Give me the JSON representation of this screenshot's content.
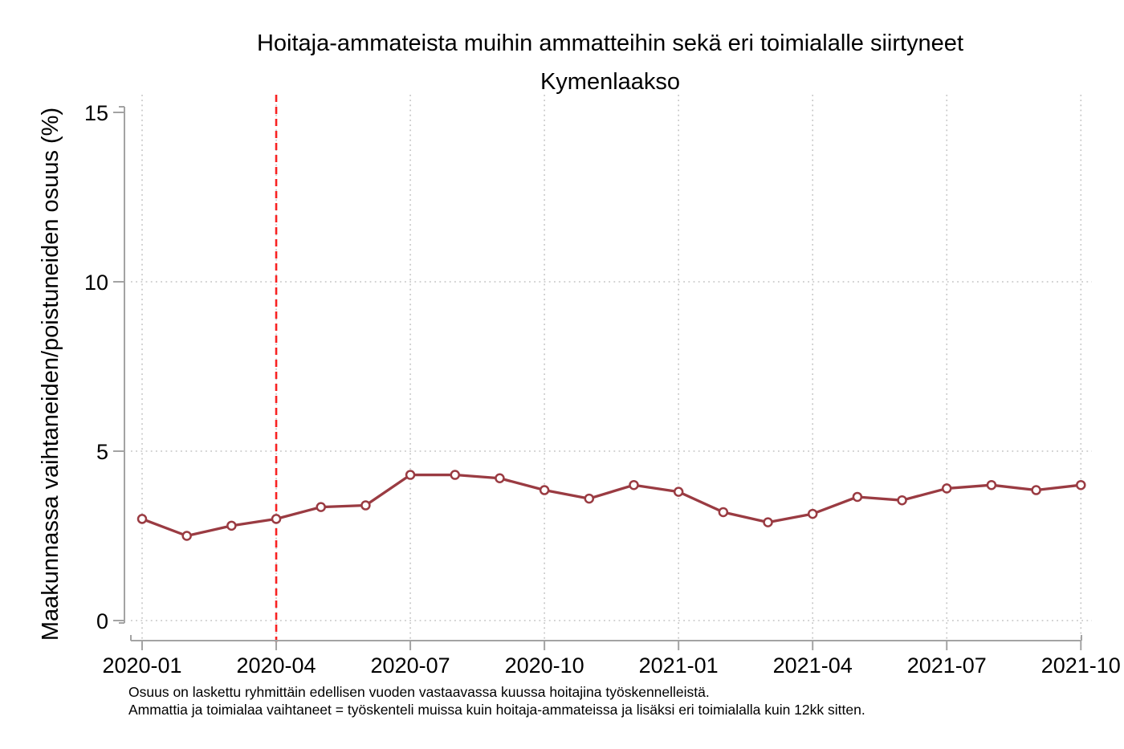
{
  "chart": {
    "title": "Hoitaja-ammateista muihin ammatteihin sekä eri toimialalle siirtyneet",
    "subtitle": "Kymenlaakso",
    "ylabel": "Maakunnassa vaihtaneiden/poistuneiden osuus (%)"
  },
  "notes": {
    "line1": "Osuus on laskettu ryhmittäin edellisen vuoden vastaavassa kuussa hoitajina työskennelleistä.",
    "line2": "Ammattia ja toimialaa vaihtaneet = työskenteli muissa kuin hoitaja-ammateissa ja lisäksi eri toimialalla kuin 12kk sitten."
  },
  "chart_data": {
    "type": "line",
    "title": "Hoitaja-ammateista muihin ammatteihin sekä eri toimialalle siirtyneet",
    "subtitle": "Kymenlaakso",
    "xlabel": "",
    "ylabel": "Maakunnassa vaihtaneiden/poistuneiden osuus (%)",
    "x": [
      "2020-01",
      "2020-02",
      "2020-03",
      "2020-04",
      "2020-05",
      "2020-06",
      "2020-07",
      "2020-08",
      "2020-09",
      "2020-10",
      "2020-11",
      "2020-12",
      "2021-01",
      "2021-02",
      "2021-03",
      "2021-04",
      "2021-05",
      "2021-06",
      "2021-07",
      "2021-08",
      "2021-09",
      "2021-10"
    ],
    "series": [
      {
        "name": "Kymenlaakso",
        "values": [
          3.0,
          2.5,
          2.8,
          3.0,
          3.35,
          3.4,
          4.3,
          4.3,
          4.2,
          3.85,
          3.6,
          4.0,
          3.8,
          3.2,
          2.9,
          3.15,
          3.65,
          3.55,
          3.9,
          4.0,
          3.85,
          4.0
        ]
      }
    ],
    "ylim": [
      0,
      15
    ],
    "y_tick_values": [
      0,
      5,
      10,
      15
    ],
    "y_tick_labels": [
      "0",
      "5",
      "10",
      "15"
    ],
    "x_tick_labels": [
      "2020-01",
      "2020-04",
      "2020-07",
      "2020-10",
      "2021-01",
      "2021-04",
      "2021-07",
      "2021-10"
    ],
    "grid_y_values": [
      0,
      5,
      10
    ],
    "grid": "dotted",
    "legend": "none",
    "vline": {
      "x": "2020-04",
      "style": "dashed",
      "color": "#f82222"
    },
    "colors": {
      "series": "#9a3b42",
      "marker_fill": "#ffffff",
      "axis": "#a3a3a3",
      "gridline": "#c3c3c3",
      "text": "#000000"
    },
    "marker": "open-circle"
  }
}
